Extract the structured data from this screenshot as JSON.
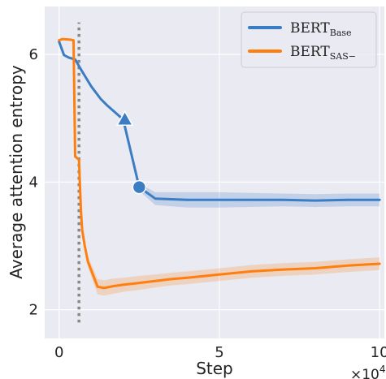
{
  "chart_data": {
    "type": "line",
    "xlabel": "Step",
    "ylabel": "Average attention entropy",
    "x_multiplier_label": "×10",
    "x_multiplier_exp": "4",
    "xlim": [
      -0.45,
      10.15
    ],
    "ylim": [
      1.55,
      6.75
    ],
    "xticks": [
      0,
      5,
      10
    ],
    "xtick_labels": [
      "0",
      "5",
      "10"
    ],
    "yticks": [
      2,
      4,
      6
    ],
    "ytick_labels": [
      "2",
      "4",
      "6"
    ],
    "grid": true,
    "legend_position": "top-right",
    "colors": {
      "plot_background": "#eaeaf2",
      "grid": "#ffffff",
      "dotted_line": "#888888"
    },
    "vertical_marker_x": 0.62,
    "vertical_marker_y": [
      1.8,
      6.5
    ],
    "series": [
      {
        "name": "BERT",
        "name_sub": "Base",
        "color": "#3b7dc4",
        "band_color": "#3b7dc4",
        "x": [
          0,
          0.15,
          0.3,
          0.5,
          0.7,
          1.0,
          1.3,
          1.5,
          2.0,
          2.5,
          3.0,
          4.0,
          5.0,
          6.0,
          7.0,
          8.0,
          9.0,
          10.0
        ],
        "y": [
          6.2,
          5.99,
          5.95,
          5.92,
          5.75,
          5.5,
          5.3,
          5.2,
          4.98,
          3.92,
          3.74,
          3.72,
          3.72,
          3.72,
          3.72,
          3.71,
          3.72,
          3.72
        ],
        "band": [
          0,
          0,
          0,
          0,
          0,
          0,
          0,
          0,
          0.02,
          0.06,
          0.1,
          0.12,
          0.12,
          0.11,
          0.1,
          0.1,
          0.1,
          0.1
        ],
        "markers": [
          {
            "x": 2.05,
            "y": 4.98,
            "shape": "triangle"
          },
          {
            "x": 2.5,
            "y": 3.92,
            "shape": "circle"
          }
        ]
      },
      {
        "name": "BERT",
        "name_sub": "SAS−",
        "color": "#ff7f0e",
        "band_color": "#ff7f0e",
        "x": [
          0,
          0.1,
          0.35,
          0.45,
          0.5,
          0.62,
          0.68,
          0.72,
          0.8,
          0.9,
          1.0,
          1.2,
          1.4,
          1.7,
          2.0,
          2.5,
          3.0,
          3.5,
          4.0,
          5.0,
          6.0,
          7.0,
          8.0,
          9.0,
          10.0
        ],
        "y": [
          6.22,
          6.24,
          6.23,
          6.22,
          4.4,
          4.35,
          3.55,
          3.25,
          3.0,
          2.75,
          2.62,
          2.36,
          2.34,
          2.37,
          2.39,
          2.42,
          2.45,
          2.48,
          2.5,
          2.55,
          2.6,
          2.63,
          2.65,
          2.69,
          2.72
        ],
        "band": [
          0,
          0,
          0,
          0,
          0,
          0,
          0.02,
          0.05,
          0.06,
          0.08,
          0.1,
          0.12,
          0.12,
          0.12,
          0.11,
          0.11,
          0.1,
          0.1,
          0.1,
          0.1,
          0.1,
          0.1,
          0.1,
          0.1,
          0.1
        ]
      }
    ]
  }
}
